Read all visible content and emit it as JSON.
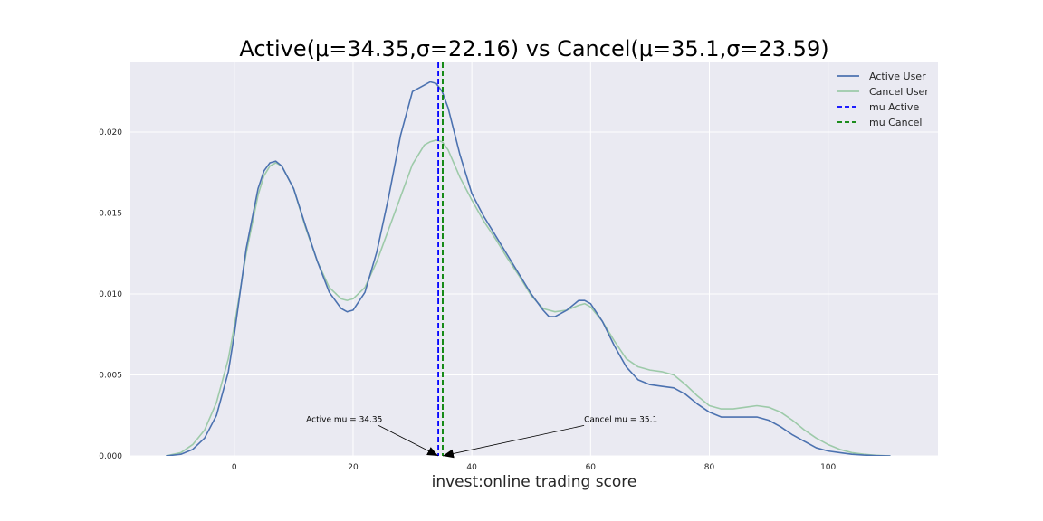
{
  "chart_data": {
    "type": "line",
    "title": "Active(μ=34.35,σ=22.16) vs Cancel(μ=35.1,σ=23.59)",
    "xlabel": "invest:online trading score",
    "ylabel": "",
    "xlim": [
      -17.5,
      118.5
    ],
    "ylim": [
      0,
      0.0243
    ],
    "xticks": [
      0,
      20,
      40,
      60,
      80,
      100
    ],
    "xtick_labels": [
      "0",
      "20",
      "40",
      "60",
      "80",
      "100"
    ],
    "yticks": [
      0,
      0.005,
      0.01,
      0.015,
      0.02
    ],
    "ytick_labels": [
      "0.000",
      "0.005",
      "0.010",
      "0.015",
      "0.020"
    ],
    "grid": true,
    "legend_position": "top-right",
    "colors": {
      "background": "#eaeaf2",
      "grid": "#ffffff",
      "active": "#4c72b0",
      "cancel": "#9dcaa9",
      "mu_active": "#0000ff",
      "mu_cancel": "#008000"
    },
    "series": [
      {
        "name": "Active User",
        "x": [
          -11.5,
          -9,
          -7,
          -5,
          -3,
          -1,
          0,
          2,
          4,
          5,
          6,
          7,
          8,
          10,
          12,
          14,
          16,
          18,
          19,
          20,
          22,
          24,
          26,
          28,
          30,
          32,
          33,
          34,
          35,
          36,
          38,
          40,
          42,
          44,
          46,
          48,
          50,
          52,
          53,
          54,
          56,
          58,
          59,
          60,
          62,
          64,
          66,
          68,
          70,
          72,
          74,
          76,
          78,
          80,
          82,
          84,
          86,
          88,
          90,
          92,
          94,
          96,
          98,
          100,
          102,
          104,
          106,
          108,
          110.5
        ],
        "y": [
          0,
          0.0001,
          0.0004,
          0.0011,
          0.0025,
          0.0052,
          0.0075,
          0.0128,
          0.0165,
          0.0176,
          0.0181,
          0.0182,
          0.0179,
          0.0165,
          0.0142,
          0.012,
          0.0101,
          0.0091,
          0.0089,
          0.009,
          0.0101,
          0.0126,
          0.016,
          0.0198,
          0.0225,
          0.0229,
          0.0231,
          0.023,
          0.0225,
          0.0215,
          0.0186,
          0.0162,
          0.0148,
          0.0136,
          0.0124,
          0.0112,
          0.01,
          0.009,
          0.0086,
          0.0086,
          0.009,
          0.0096,
          0.0096,
          0.0094,
          0.0083,
          0.0068,
          0.0055,
          0.0047,
          0.0044,
          0.0043,
          0.0042,
          0.0038,
          0.0032,
          0.0027,
          0.0024,
          0.0024,
          0.0024,
          0.0024,
          0.0022,
          0.0018,
          0.0013,
          0.0009,
          0.0005,
          0.0003,
          0.0002,
          0.0001,
          5e-05,
          2e-05,
          0
        ]
      },
      {
        "name": "Cancel User",
        "x": [
          -11.5,
          -9,
          -7,
          -5,
          -3,
          -1,
          0,
          2,
          4,
          5,
          6,
          7,
          8,
          10,
          12,
          14,
          16,
          18,
          19,
          20,
          22,
          24,
          26,
          28,
          30,
          32,
          33,
          34,
          35,
          36,
          38,
          40,
          42,
          44,
          46,
          48,
          50,
          52,
          54,
          56,
          58,
          59,
          60,
          62,
          64,
          66,
          68,
          70,
          72,
          74,
          76,
          78,
          80,
          82,
          84,
          86,
          88,
          90,
          92,
          94,
          96,
          98,
          100,
          102,
          104,
          106,
          108,
          110.5
        ],
        "y": [
          0,
          0.0002,
          0.0007,
          0.0016,
          0.0033,
          0.006,
          0.008,
          0.0125,
          0.0161,
          0.0173,
          0.0179,
          0.0181,
          0.0179,
          0.0165,
          0.0141,
          0.012,
          0.0104,
          0.0097,
          0.0096,
          0.0097,
          0.0104,
          0.012,
          0.014,
          0.016,
          0.018,
          0.0192,
          0.0194,
          0.0195,
          0.0194,
          0.0189,
          0.0172,
          0.0158,
          0.0145,
          0.0134,
          0.0122,
          0.0111,
          0.0099,
          0.0091,
          0.0089,
          0.009,
          0.0093,
          0.0094,
          0.0092,
          0.0083,
          0.0071,
          0.006,
          0.0055,
          0.0053,
          0.0052,
          0.005,
          0.0044,
          0.0037,
          0.0031,
          0.0029,
          0.0029,
          0.003,
          0.0031,
          0.003,
          0.0027,
          0.0022,
          0.0016,
          0.0011,
          0.0007,
          0.0004,
          0.0002,
          0.0001,
          4e-05,
          0
        ]
      }
    ],
    "vlines": [
      {
        "name": "mu Active",
        "x": 34.35
      },
      {
        "name": "mu Cancel",
        "x": 35.1
      }
    ],
    "annotations": [
      {
        "text": "Active mu = 34.35",
        "text_x": 12.1,
        "text_y": 0.0021,
        "arrow_to_x": 34.35,
        "arrow_to_y": 0
      },
      {
        "text": "Cancel mu = 35.1",
        "text_x": 58.9,
        "text_y": 0.0021,
        "arrow_to_x": 35.1,
        "arrow_to_y": 0
      }
    ]
  }
}
